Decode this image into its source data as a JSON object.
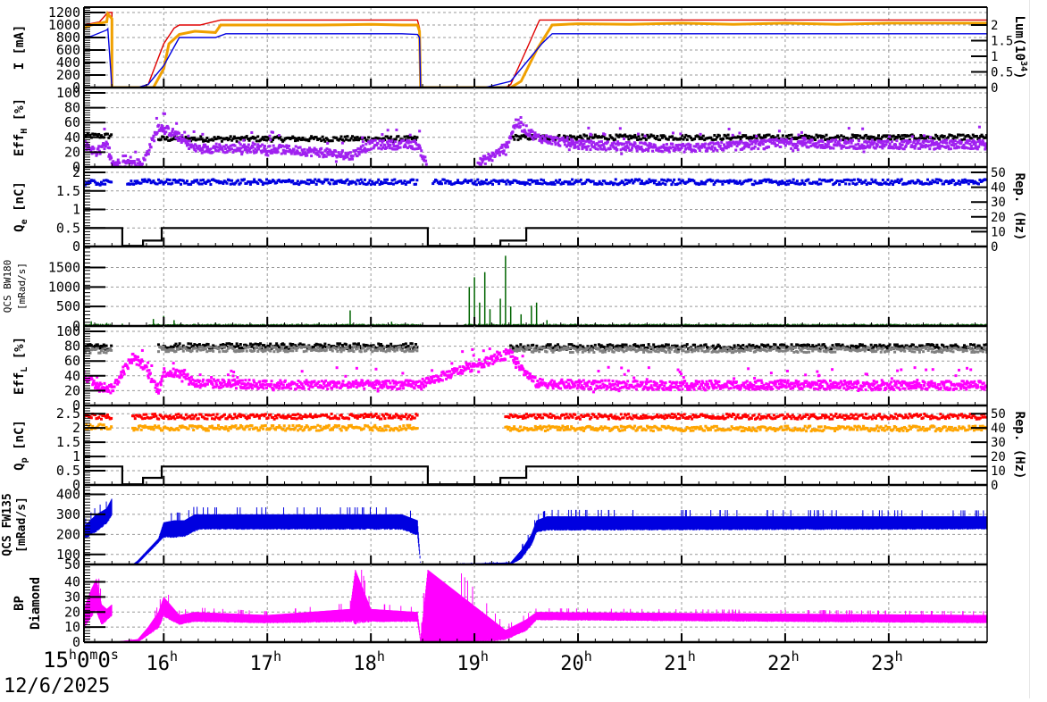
{
  "chart_data": {
    "type": "line",
    "title": "",
    "date": "12/6/2025",
    "x_origin_label": {
      "h": "15",
      "m": "0",
      "s": "0"
    },
    "x_axis": {
      "unit": "hour",
      "range": [
        15.23,
        23.95
      ],
      "tick_labels": [
        "16",
        "17",
        "18",
        "19",
        "20",
        "21",
        "22",
        "23"
      ],
      "tick_values": [
        16,
        17,
        18,
        19,
        20,
        21,
        22,
        23
      ],
      "suffix": "h"
    },
    "grid": true,
    "panels": [
      {
        "id": "beam-current",
        "ylabel": "I [mA]",
        "ylim": [
          0,
          1200
        ],
        "yticks": [
          0,
          200,
          400,
          600,
          800,
          1000,
          1200
        ],
        "y2label": "Lum(10^34)",
        "y2lim": [
          0,
          2.4
        ],
        "y2ticks": [
          "0",
          "0.5",
          "1",
          "1.5",
          "2"
        ],
        "y2tick_values": [
          0,
          0.5,
          1,
          1.5,
          2
        ],
        "series": [
          {
            "name": "HER current",
            "color": "#e00000",
            "style": "line",
            "x": [
              15.23,
              15.38,
              15.45,
              15.46,
              15.5,
              15.5,
              15.75,
              15.85,
              16.0,
              16.1,
              16.15,
              16.3,
              16.35,
              16.55,
              18.3,
              18.45,
              18.47,
              18.48,
              19.3,
              19.35,
              19.5,
              19.62,
              19.63,
              19.7,
              23.95
            ],
            "y": [
              1000,
              1050,
              1180,
              1200,
              1200,
              0,
              0,
              50,
              700,
              950,
              1000,
              1000,
              1000,
              1080,
              1080,
              1080,
              950,
              0,
              0,
              50,
              600,
              1050,
              1080,
              1080,
              1080
            ]
          },
          {
            "name": "LER current",
            "color": "#f0a000",
            "style": "scatter-line",
            "x": [
              15.23,
              15.3,
              15.45,
              15.46,
              15.5,
              15.5,
              15.9,
              16.0,
              16.05,
              16.15,
              16.3,
              16.5,
              16.55,
              17.0,
              17.5,
              18.0,
              18.3,
              18.45,
              18.47,
              18.48,
              19.35,
              19.45,
              19.6,
              19.75,
              20.0,
              20.5,
              21.0,
              21.5,
              22.0,
              22.5,
              23.0,
              23.95
            ],
            "y": [
              950,
              1000,
              1050,
              1180,
              1100,
              0,
              0,
              300,
              700,
              850,
              900,
              880,
              1000,
              1000,
              1000,
              1010,
              1000,
              1000,
              900,
              0,
              0,
              100,
              600,
              1000,
              1020,
              1010,
              1030,
              1010,
              1030,
              1010,
              1030,
              1030
            ]
          },
          {
            "name": "Luminosity",
            "color": "#0000e0",
            "style": "line",
            "x": [
              15.23,
              15.3,
              15.45,
              15.46,
              15.5,
              15.5,
              15.75,
              15.85,
              16.0,
              16.05,
              16.15,
              16.3,
              16.5,
              16.6,
              18.3,
              18.45,
              18.47,
              18.48,
              19.1,
              19.35,
              19.5,
              19.65,
              19.75,
              23.95
            ],
            "y": [
              790,
              820,
              920,
              940,
              0,
              0,
              0,
              50,
              350,
              500,
              800,
              800,
              800,
              860,
              860,
              850,
              800,
              0,
              0,
              100,
              400,
              700,
              860,
              860
            ]
          }
        ]
      },
      {
        "id": "eff-h",
        "ylabel": "Eff_H [%]",
        "ylim": [
          0,
          100
        ],
        "yticks": [
          0,
          20,
          40,
          60,
          80,
          100
        ],
        "series": [
          {
            "name": "Eff_H black",
            "color": "#000000",
            "style": "scatter",
            "segments": [
              [
                15.23,
                15.5,
                42
              ],
              [
                15.95,
                18.45,
                38
              ],
              [
                19.35,
                23.95,
                40
              ]
            ]
          },
          {
            "name": "Eff_H purple",
            "color": "#a020f0",
            "style": "scatter",
            "profile_x": [
              15.23,
              15.35,
              15.45,
              15.5,
              15.8,
              15.95,
              16.1,
              16.3,
              16.5,
              17.0,
              17.5,
              17.8,
              18.0,
              18.45,
              18.55,
              19.0,
              19.3,
              19.4,
              19.6,
              20.0,
              21.0,
              22.0,
              23.0,
              23.95
            ],
            "profile_y": [
              30,
              20,
              30,
              5,
              5,
              55,
              45,
              25,
              25,
              25,
              20,
              15,
              30,
              30,
              2,
              2,
              25,
              60,
              40,
              30,
              25,
              32,
              30,
              30
            ]
          }
        ]
      },
      {
        "id": "charge-e",
        "ylabel": "Q_e [nC]",
        "ylim": [
          0,
          2
        ],
        "yticks": [
          "0",
          "0.5",
          "1",
          "1.5",
          "2"
        ],
        "ytick_values": [
          0,
          0.5,
          1,
          1.5,
          2
        ],
        "y2label": "Rep. (Hz)",
        "y2lim": [
          0,
          50
        ],
        "y2ticks": [
          0,
          10,
          20,
          30,
          40,
          50
        ],
        "series": [
          {
            "name": "Q_e",
            "color": "#0000e0",
            "style": "scatter",
            "segments": [
              [
                15.23,
                15.5,
                1.72
              ],
              [
                15.65,
                18.45,
                1.74
              ],
              [
                18.6,
                23.95,
                1.74
              ]
            ]
          },
          {
            "name": "Rep rate e",
            "color": "#000000",
            "style": "step",
            "x": [
              15.23,
              15.6,
              15.6,
              15.8,
              15.8,
              15.98,
              15.98,
              18.55,
              18.55,
              19.25,
              19.25,
              19.5,
              19.5,
              23.95
            ],
            "y": [
              12.5,
              12.5,
              0.5,
              0.5,
              4,
              4,
              12.5,
              12.5,
              0.5,
              0.5,
              4,
              4,
              12.5,
              12.5
            ]
          }
        ]
      },
      {
        "id": "qcs-bw180",
        "ylabel": "QCS BW180 [mRad/s]",
        "ylim": [
          0,
          1900
        ],
        "yticks": [
          0,
          500,
          1000,
          1500
        ],
        "series": [
          {
            "name": "QCS BW180",
            "color": "#006400",
            "style": "bars",
            "baseline": 30,
            "bursts": [
              [
                15.3,
                120
              ],
              [
                15.45,
                80
              ],
              [
                15.6,
                60
              ],
              [
                15.9,
                180
              ],
              [
                16.0,
                260
              ],
              [
                16.1,
                150
              ],
              [
                16.5,
                90
              ],
              [
                17.0,
                80
              ],
              [
                17.5,
                90
              ],
              [
                17.8,
                400
              ],
              [
                18.2,
                110
              ],
              [
                18.95,
                1000
              ],
              [
                19.0,
                1250
              ],
              [
                19.05,
                600
              ],
              [
                19.1,
                1380
              ],
              [
                19.15,
                430
              ],
              [
                19.25,
                700
              ],
              [
                19.3,
                1800
              ],
              [
                19.35,
                500
              ],
              [
                19.45,
                300
              ],
              [
                19.55,
                520
              ],
              [
                19.6,
                600
              ],
              [
                19.7,
                150
              ],
              [
                20.0,
                100
              ],
              [
                21.0,
                80
              ],
              [
                22.0,
                80
              ],
              [
                23.0,
                70
              ]
            ]
          }
        ]
      },
      {
        "id": "eff-l",
        "ylabel": "Eff_L [%]",
        "ylim": [
          0,
          100
        ],
        "yticks": [
          0,
          20,
          40,
          60,
          80,
          100
        ],
        "series": [
          {
            "name": "Eff_L black",
            "color": "#000000",
            "style": "scatter",
            "segments": [
              [
                15.23,
                15.5,
                79
              ],
              [
                15.95,
                18.45,
                80
              ],
              [
                19.35,
                23.95,
                79
              ]
            ]
          },
          {
            "name": "Eff_L gray",
            "color": "#808080",
            "style": "scatter",
            "segments": [
              [
                15.23,
                15.5,
                74
              ],
              [
                15.95,
                18.45,
                76
              ],
              [
                19.35,
                23.95,
                75
              ]
            ]
          },
          {
            "name": "Eff_L magenta",
            "color": "#ff00ff",
            "style": "scatter",
            "profile_x": [
              15.23,
              15.35,
              15.5,
              15.7,
              15.8,
              15.95,
              16.0,
              16.2,
              16.3,
              17.0,
              18.0,
              18.45,
              19.35,
              19.45,
              19.6,
              20.0,
              21.0,
              22.0,
              23.0,
              23.95
            ],
            "profile_y": [
              40,
              28,
              22,
              65,
              55,
              20,
              45,
              42,
              30,
              28,
              28,
              28,
              70,
              50,
              30,
              28,
              27,
              28,
              27,
              27
            ]
          }
        ]
      },
      {
        "id": "charge-p",
        "ylabel": "Q_p [nC]",
        "ylim": [
          0,
          2.6
        ],
        "yticks": [
          "0",
          "0.5",
          "1",
          "1.5",
          "2",
          "2.5"
        ],
        "ytick_values": [
          0,
          0.5,
          1,
          1.5,
          2,
          2.5
        ],
        "y2label": "Rep. (Hz)",
        "y2lim": [
          0,
          52
        ],
        "y2ticks": [
          0,
          10,
          20,
          30,
          40,
          50
        ],
        "series": [
          {
            "name": "Q_p red",
            "color": "#ff0000",
            "style": "scatter",
            "segments": [
              [
                15.23,
                15.5,
                2.4
              ],
              [
                15.7,
                18.45,
                2.4
              ],
              [
                19.3,
                23.95,
                2.4
              ]
            ]
          },
          {
            "name": "Q_p orange",
            "color": "#ffa500",
            "style": "scatter",
            "segments": [
              [
                15.23,
                15.5,
                2.05
              ],
              [
                15.7,
                18.45,
                2.0
              ],
              [
                19.3,
                23.95,
                1.98
              ]
            ]
          },
          {
            "name": "Rep rate p",
            "color": "#000000",
            "style": "step",
            "x": [
              15.23,
              15.6,
              15.6,
              15.8,
              15.8,
              15.98,
              15.98,
              18.55,
              18.55,
              19.25,
              19.25,
              19.5,
              19.5,
              23.95
            ],
            "y": [
              13,
              13,
              0.5,
              0.5,
              5,
              5,
              13,
              13,
              0.5,
              0.5,
              5,
              5,
              13,
              13
            ]
          }
        ]
      },
      {
        "id": "qcs-fw135",
        "ylabel": "QCS FW135 [mRad/s]",
        "ylim": [
          50,
          420
        ],
        "yticks": [
          50,
          100,
          200,
          300,
          400
        ],
        "series": [
          {
            "name": "QCS FW135",
            "color": "#0000e0",
            "style": "band",
            "x": [
              15.23,
              15.35,
              15.45,
              15.5,
              15.5,
              15.7,
              15.75,
              15.95,
              16.0,
              16.1,
              16.2,
              16.3,
              16.35,
              18.3,
              18.45,
              18.48,
              19.35,
              19.45,
              19.55,
              19.6,
              19.7,
              23.95
            ],
            "lo": [
              180,
              220,
              260,
              300,
              50,
              50,
              55,
              160,
              190,
              190,
              195,
              220,
              230,
              230,
              200,
              50,
              50,
              80,
              150,
              215,
              225,
              230
            ],
            "hi": [
              240,
              300,
              330,
              380,
              50,
              50,
              70,
              180,
              260,
              270,
              270,
              300,
              300,
              300,
              270,
              50,
              60,
              120,
              200,
              270,
              290,
              290
            ]
          }
        ]
      },
      {
        "id": "bp-diamond",
        "ylabel": "BP Diamond",
        "ylim": [
          0,
          48
        ],
        "yticks": [
          0,
          10,
          20,
          30,
          40
        ],
        "series": [
          {
            "name": "BP Diamond",
            "color": "#ff00ff",
            "style": "band",
            "x": [
              15.23,
              15.3,
              15.35,
              15.4,
              15.45,
              15.5,
              15.5,
              15.75,
              15.85,
              15.95,
              16.0,
              16.1,
              16.15,
              16.3,
              17.0,
              17.8,
              17.85,
              18.0,
              18.45,
              18.48,
              18.55,
              19.3,
              19.5,
              19.6,
              23.95
            ],
            "lo": [
              10,
              18,
              22,
              12,
              15,
              18,
              0,
              0,
              5,
              10,
              18,
              14,
              12,
              14,
              13,
              14,
              15,
              14,
              14,
              0,
              0,
              2,
              8,
              15,
              13
            ],
            "hi": [
              22,
              35,
              42,
              25,
              22,
              25,
              0,
              2,
              10,
              20,
              30,
              22,
              18,
              20,
              18,
              22,
              48,
              22,
              20,
              2,
              48,
              8,
              15,
              20,
              18
            ]
          }
        ]
      }
    ]
  }
}
